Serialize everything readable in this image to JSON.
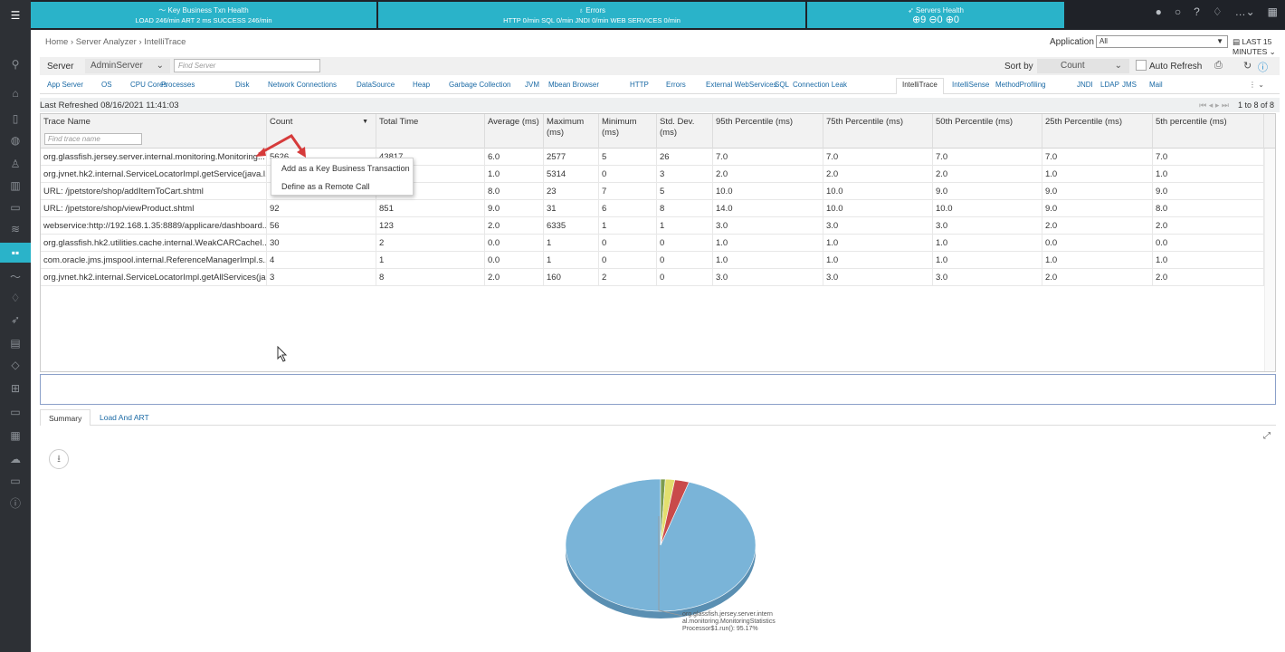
{
  "top_health": {
    "ktxn_title": "Key Business Txn Health",
    "ktxn_sub": "LOAD 246/min  ART 2 ms  SUCCESS 246/min",
    "errors_title": "Errors",
    "errors_sub": "HTTP 0/min  SQL 0/min  JNDI 0/min  WEB SERVICES 0/min",
    "servers_title": "Servers Health",
    "servers_sub": "⊕9  ⊖0  ⊕0"
  },
  "breadcrumb": "Home › Server Analyzer › IntelliTrace",
  "application": {
    "label": "Application",
    "value": "All",
    "time_range": "LAST 15 MINUTES"
  },
  "server": {
    "label": "Server",
    "value": "AdminServer",
    "find_placeholder": "Find Server"
  },
  "sort": {
    "label": "Sort by",
    "value": "Count",
    "auto_refresh": "Auto Refresh"
  },
  "tabs": [
    "App Server",
    "OS",
    "CPU Cores",
    "Processes",
    "Disk",
    "Network Connections",
    "DataSource",
    "Heap",
    "Garbage Collection",
    "JVM",
    "Mbean Browser",
    "HTTP",
    "Errors",
    "External WebServices",
    "SQL",
    "Connection Leak",
    "IntelliTrace",
    "IntelliSense",
    "MethodProfiling",
    "JNDI",
    "LDAP",
    "JMS",
    "Mail"
  ],
  "last_refreshed": "Last Refreshed  08/16/2021 11:41:03",
  "pager": "1 to 8 of 8",
  "grid": {
    "columns": [
      "Trace Name",
      "Count",
      "Total Time",
      "Average (ms)",
      "Maximum (ms)",
      "Minimum (ms)",
      "Std. Dev. (ms)",
      "95th Percentile (ms)",
      "75th Percentile (ms)",
      "50th Percentile (ms)",
      "25th Percentile (ms)",
      "5th percentile (ms)"
    ],
    "find_placeholder": "Find trace name",
    "rows": [
      [
        "org.glassfish.jersey.server.internal.monitoring.Monitoring...",
        "5626",
        "43817",
        "6.0",
        "2577",
        "5",
        "26",
        "7.0",
        "7.0",
        "7.0",
        "7.0",
        "7.0"
      ],
      [
        "org.jvnet.hk2.internal.ServiceLocatorImpl.getService(java.l...",
        "",
        "",
        "1.0",
        "5314",
        "0",
        "3",
        "2.0",
        "2.0",
        "2.0",
        "1.0",
        "1.0"
      ],
      [
        "URL: /jpetstore/shop/addItemToCart.shtml",
        "",
        "",
        "8.0",
        "23",
        "7",
        "5",
        "10.0",
        "10.0",
        "9.0",
        "9.0",
        "9.0"
      ],
      [
        "URL: /jpetstore/shop/viewProduct.shtml",
        "92",
        "851",
        "9.0",
        "31",
        "6",
        "8",
        "14.0",
        "10.0",
        "10.0",
        "9.0",
        "8.0"
      ],
      [
        "webservice:http://192.168.1.35:8889/applicare/dashboard...",
        "56",
        "123",
        "2.0",
        "6335",
        "1",
        "1",
        "3.0",
        "3.0",
        "3.0",
        "2.0",
        "2.0"
      ],
      [
        "org.glassfish.hk2.utilities.cache.internal.WeakCARCacheI...",
        "30",
        "2",
        "0.0",
        "1",
        "0",
        "0",
        "1.0",
        "1.0",
        "1.0",
        "0.0",
        "0.0"
      ],
      [
        "com.oracle.jms.jmspool.internal.ReferenceManagerImpl.s...",
        "4",
        "1",
        "0.0",
        "1",
        "0",
        "0",
        "1.0",
        "1.0",
        "1.0",
        "1.0",
        "1.0"
      ],
      [
        "org.jvnet.hk2.internal.ServiceLocatorImpl.getAllServices(ja...",
        "3",
        "8",
        "2.0",
        "160",
        "2",
        "0",
        "3.0",
        "3.0",
        "3.0",
        "2.0",
        "2.0"
      ]
    ]
  },
  "context_menu": [
    "Add as a Key Business Transaction",
    "Define as a Remote Call"
  ],
  "bottom_tabs": [
    "Summary",
    "Load And ART"
  ],
  "pie": {
    "label": "org.glassfish.jersey.server.internal.monitoring.MonitoringStatisticsProcessor$1.run(): 95.17%",
    "label_lines": [
      "org.glassfish.jersey.server.intern",
      "al.monitoring.MonitoringStatistics",
      "Processor$1.run(): 95.17%"
    ]
  },
  "chart_data": {
    "type": "pie",
    "slices": [
      {
        "label": "org.glassfish.jersey.server.internal.monitoring.MonitoringStatisticsProcessor$1.run()",
        "value": 95.17,
        "color": "#7ab4d8"
      },
      {
        "label": "",
        "value": 0.8,
        "color": "#7e9c4f"
      },
      {
        "label": "",
        "value": 1.6,
        "color": "#e3df6e"
      },
      {
        "label": "",
        "value": 2.43,
        "color": "#c94a4a"
      }
    ]
  },
  "colors": {
    "accent": "#2ab3c9",
    "sidebar": "#2d3035",
    "topbar": "#1f2228"
  }
}
